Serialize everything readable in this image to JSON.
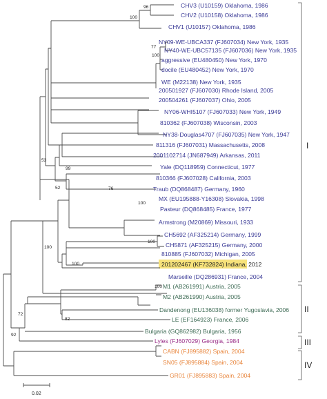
{
  "colors": {
    "blue": "#3a3a96",
    "green": "#3e6b55",
    "magenta": "#9a2f88",
    "orange": "#e8843a",
    "highlight": "#f7e27a",
    "black": "#222222"
  },
  "taxa": [
    {
      "id": "chv3",
      "label": "CHV3 (U10159) Oklahoma, 1986",
      "color": "blue"
    },
    {
      "id": "chv2",
      "label": "CHV2 (U10158) Oklahoma, 1986",
      "color": "blue"
    },
    {
      "id": "chv1",
      "label": "CHV1 (U10157) Oklahoma, 1986",
      "color": "blue"
    },
    {
      "id": "ny09",
      "label": "NY09-WE-UBCA337 (FJ607034) New York, 1935",
      "color": "blue"
    },
    {
      "id": "ny40",
      "label": "NY40-WE-UBC57135 (FJ607036) New York, 1935",
      "color": "blue"
    },
    {
      "id": "aggr",
      "label": "aggressive (EU480450)  New York, 1970",
      "color": "blue"
    },
    {
      "id": "doci",
      "label": "docile (EU480452) New York, 1970",
      "color": "blue"
    },
    {
      "id": "we",
      "label": "WE (M22138) New York, 1935",
      "color": "blue"
    },
    {
      "id": "r1927",
      "label": "200501927 (FJ607030) Rhode Island, 2005",
      "color": "blue"
    },
    {
      "id": "o4261",
      "label": "200504261 (FJ607037) Ohio, 2005",
      "color": "blue"
    },
    {
      "id": "ny06",
      "label": "NY06-WHI5107 (FJ607033) New York, 1949",
      "color": "blue"
    },
    {
      "id": "w810362",
      "label": "810362 (FJ607038) Wisconsin, 2003",
      "color": "blue"
    },
    {
      "id": "ny38",
      "label": "NY38-Douglas4707 (FJ607035) New York, 1947",
      "color": "blue"
    },
    {
      "id": "m811316",
      "label": "811316 (FJ607031) Massachusetts, 2008",
      "color": "blue"
    },
    {
      "id": "a2001102714",
      "label": "2001102714  (JN687949) Arkansas, 2011",
      "color": "blue"
    },
    {
      "id": "yale",
      "label": "Yale  (DQ118959) Connecticut, 1977",
      "color": "blue"
    },
    {
      "id": "c810366",
      "label": "810366 (FJ607028) California, 2003",
      "color": "blue"
    },
    {
      "id": "traub",
      "label": "Traub (DQ868487) Germany, 1960",
      "color": "blue"
    },
    {
      "id": "mx",
      "label": "MX (EU195888-Y16308) Slovakia, 1998",
      "color": "blue"
    },
    {
      "id": "pasteur",
      "label": "Pasteur  (DQ868485) France, 1977",
      "color": "blue"
    },
    {
      "id": "armstrong",
      "label": "Armstrong (M20869) Missouri, 1933",
      "color": "blue"
    },
    {
      "id": "ch5692",
      "label": "CH5692 (AF325214) Germany, 1999",
      "color": "blue"
    },
    {
      "id": "ch5871",
      "label": "CH5871 (AF325215) Germany, 2000",
      "color": "blue"
    },
    {
      "id": "m810885",
      "label": "810885 (FJ607032) Michigan, 2005",
      "color": "blue"
    },
    {
      "id": "ind",
      "label": "201202467  (KF732824)  Indiana, 2012",
      "color": "black",
      "highlight": true
    },
    {
      "id": "marseille",
      "label": "Marseille  (DQ286931) France, 2004",
      "color": "blue"
    },
    {
      "id": "m1",
      "label": "M1  (AB261991)  Austria, 2005",
      "color": "green"
    },
    {
      "id": "m2",
      "label": "M2  (AB261990)  Austria, 2005",
      "color": "green"
    },
    {
      "id": "dandenong",
      "label": "Dandenong (EU136038) former Yugoslavia, 2006",
      "color": "green"
    },
    {
      "id": "le",
      "label": "LE  (EF164923) France, 2006",
      "color": "green"
    },
    {
      "id": "bulgaria",
      "label": "Bulgaria  (GQ862982) Bulgaria, 1956",
      "color": "green"
    },
    {
      "id": "lyles",
      "label": "Lyles  (FJ607029)  Georgia, 1984",
      "color": "magenta"
    },
    {
      "id": "cabn",
      "label": "CABN  (FJ895882) Spain, 2004",
      "color": "orange"
    },
    {
      "id": "sn05",
      "label": "SN05  (FJ895884) Spain, 2004",
      "color": "orange"
    },
    {
      "id": "gr01",
      "label": "GR01  (FJ895883) Spain, 2004",
      "color": "orange"
    }
  ],
  "bootstrap": {
    "n_chv": "96",
    "n_chv_all": "100",
    "n_ny": "77",
    "n_ny_all": "100",
    "n_53": "53",
    "n_99": "99",
    "n_52": "52",
    "n_76": "76",
    "n_mx": "100",
    "n_ch": "100",
    "n_main": "100",
    "n_ind": "100",
    "n_ii_top": "100",
    "n_72": "72",
    "n_82": "82",
    "n_92": "92"
  },
  "clusters": [
    {
      "id": "i",
      "label": "I"
    },
    {
      "id": "ii",
      "label": "II"
    },
    {
      "id": "iii",
      "label": "III"
    },
    {
      "id": "iv",
      "label": "IV"
    }
  ],
  "scale": {
    "label": "0.02"
  }
}
